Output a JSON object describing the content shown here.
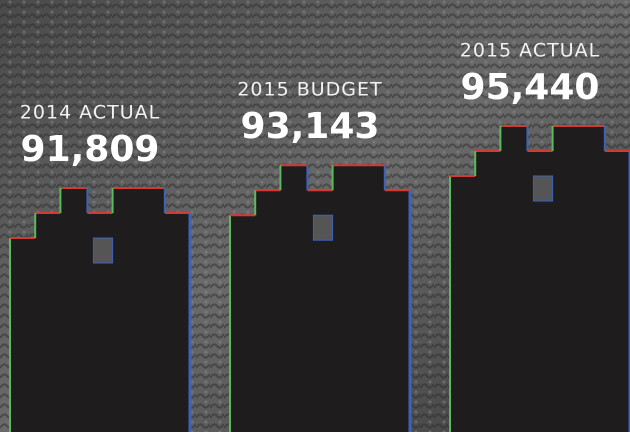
{
  "chart_data": {
    "type": "bar",
    "categories": [
      "2014 ACTUAL",
      "2015 BUDGET",
      "2015 ACTUAL"
    ],
    "values": [
      91809,
      93143,
      95440
    ],
    "value_labels": [
      "91,809",
      "93,143",
      "95,440"
    ],
    "color": "#1e1c1c"
  }
}
